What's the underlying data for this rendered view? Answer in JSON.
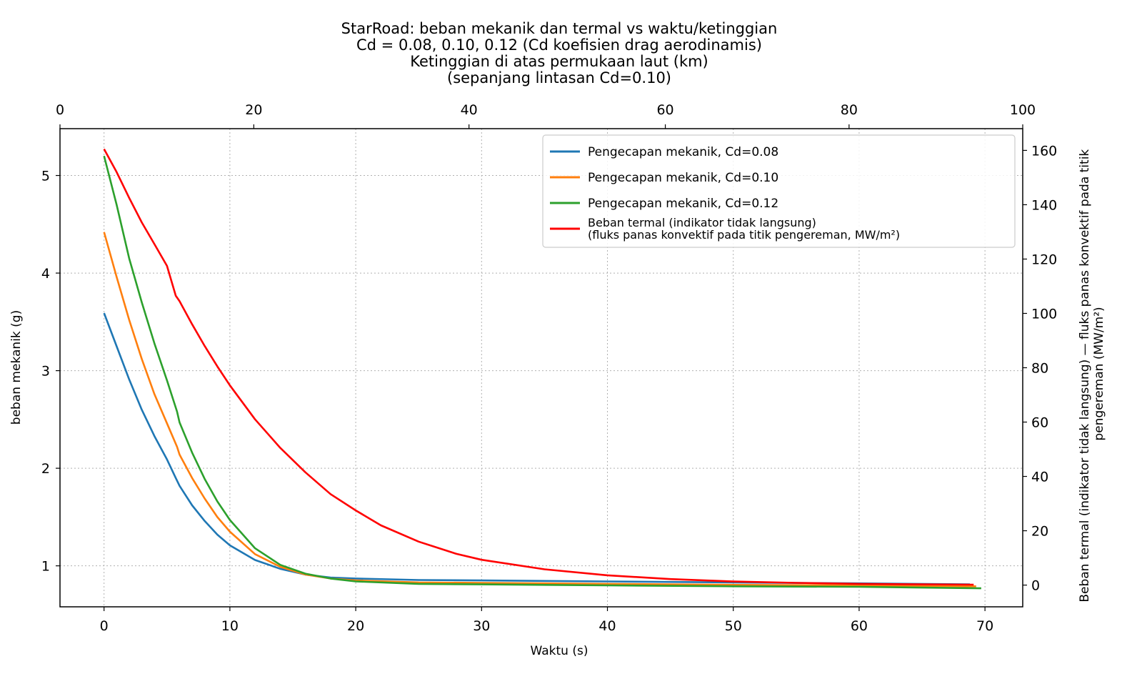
{
  "chart_data": {
    "type": "line",
    "title_lines": [
      "StarRoad: beban mekanik dan termal vs waktu/ketinggian",
      "Cd = 0.08, 0.10, 0.12 (Cd koefisien drag aerodinamis)",
      "Ketinggian di atas permukaan laut (km)",
      "(sepanjang lintasan Cd=0.10)"
    ],
    "xlabel": "Waktu (s)",
    "ylabel": "beban mekanik (g)",
    "y2label": "Beban termal (indikator tidak langsung) — fluks panas konvektif pada titik pengereman (MW/m²)",
    "xlim": [
      -3.5,
      73
    ],
    "ylim": [
      0.58,
      5.48
    ],
    "y2lim": [
      -8,
      168
    ],
    "x_ticks": [
      0,
      10,
      20,
      30,
      40,
      50,
      60,
      70
    ],
    "y_ticks": [
      1,
      2,
      3,
      4,
      5
    ],
    "y2_ticks": [
      0,
      20,
      40,
      60,
      80,
      100,
      120,
      140,
      160
    ],
    "top_axis": {
      "label": "Ketinggian di atas permukaan laut (km)",
      "ticks": [
        "0",
        "20",
        "40",
        "60",
        "80",
        "100"
      ],
      "tick_times": [
        -3.5,
        11.9,
        29.0,
        44.6,
        59.2,
        73.0
      ]
    },
    "grid": true,
    "legend_position": "top-right",
    "series": [
      {
        "name": "Pengecapan mekanik, Cd=0.08",
        "axis": "left",
        "color": "#1f77b4",
        "x": [
          0,
          1,
          2,
          3,
          4,
          5,
          5.7,
          6,
          7,
          8,
          9,
          10,
          12,
          14,
          16,
          18,
          20,
          25,
          30,
          40,
          50,
          60,
          68.8
        ],
        "y": [
          3.59,
          3.25,
          2.91,
          2.6,
          2.33,
          2.09,
          1.9,
          1.82,
          1.62,
          1.46,
          1.32,
          1.21,
          1.06,
          0.97,
          0.91,
          0.88,
          0.87,
          0.855,
          0.85,
          0.84,
          0.83,
          0.82,
          0.81
        ]
      },
      {
        "name": "Pengecapan mekanik, Cd=0.10",
        "axis": "left",
        "color": "#ff7f0e",
        "x": [
          0,
          1,
          2,
          3,
          4,
          5,
          5.8,
          6,
          7,
          8,
          9,
          10,
          12,
          14,
          16,
          18,
          20,
          25,
          30,
          40,
          50,
          60,
          69.3
        ],
        "y": [
          4.42,
          3.96,
          3.52,
          3.12,
          2.76,
          2.46,
          2.22,
          2.14,
          1.9,
          1.69,
          1.5,
          1.35,
          1.12,
          0.99,
          0.91,
          0.87,
          0.85,
          0.83,
          0.825,
          0.815,
          0.805,
          0.8,
          0.79
        ]
      },
      {
        "name": "Pengecapan mekanik, Cd=0.12",
        "axis": "left",
        "color": "#2ca02c",
        "x": [
          0,
          1,
          2,
          3,
          4,
          5,
          5.8,
          6,
          7,
          8,
          9,
          10,
          12,
          14,
          16,
          18,
          20,
          25,
          30,
          40,
          50,
          60,
          69.7
        ],
        "y": [
          5.2,
          4.7,
          4.15,
          3.7,
          3.28,
          2.9,
          2.58,
          2.47,
          2.16,
          1.89,
          1.66,
          1.47,
          1.18,
          1.01,
          0.92,
          0.87,
          0.84,
          0.815,
          0.81,
          0.8,
          0.79,
          0.785,
          0.77
        ]
      },
      {
        "name": "Beban termal (indikator tidak langsung)\n(fluks panas konvektif pada titik pengereman, MW/m²)",
        "axis": "right",
        "color": "#ff0000",
        "x": [
          0,
          1,
          2,
          3,
          4,
          5,
          5.7,
          6,
          7,
          8,
          9,
          10,
          12,
          14,
          16,
          18,
          20,
          22,
          25,
          28,
          30,
          35,
          40,
          45,
          50,
          55,
          60,
          65,
          69.1
        ],
        "y": [
          160.5,
          152,
          142.5,
          133.5,
          125.5,
          117.5,
          106.5,
          104.5,
          96,
          88,
          80.5,
          73.5,
          61,
          50.5,
          41.5,
          33.5,
          27.5,
          22,
          16,
          11.5,
          9.3,
          5.8,
          3.6,
          2.2,
          1.3,
          0.8,
          0.45,
          0.25,
          0.15
        ]
      }
    ]
  }
}
